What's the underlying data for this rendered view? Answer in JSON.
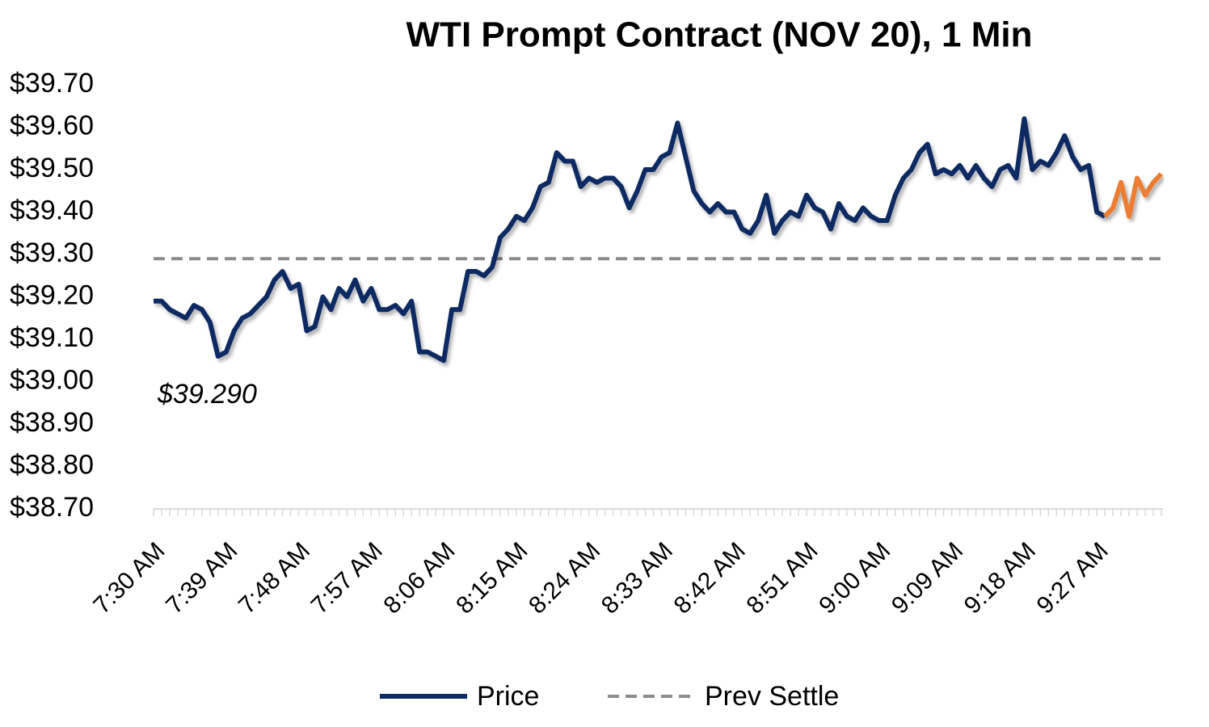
{
  "chart_data": {
    "type": "line",
    "title": "WTI Prompt Contract (NOV 20), 1 Min",
    "categories": [
      "7:30 AM",
      null,
      null,
      null,
      null,
      null,
      null,
      null,
      null,
      "7:39 AM",
      null,
      null,
      null,
      null,
      null,
      null,
      null,
      null,
      "7:48 AM",
      null,
      null,
      null,
      null,
      null,
      null,
      null,
      null,
      "7:57 AM",
      null,
      null,
      null,
      null,
      null,
      null,
      null,
      null,
      "8:06 AM",
      null,
      null,
      null,
      null,
      null,
      null,
      null,
      null,
      "8:15 AM",
      null,
      null,
      null,
      null,
      null,
      null,
      null,
      null,
      "8:24 AM",
      null,
      null,
      null,
      null,
      null,
      null,
      null,
      null,
      "8:33 AM",
      null,
      null,
      null,
      null,
      null,
      null,
      null,
      null,
      "8:42 AM",
      null,
      null,
      null,
      null,
      null,
      null,
      null,
      null,
      "8:51 AM",
      null,
      null,
      null,
      null,
      null,
      null,
      null,
      null,
      "9:00 AM",
      null,
      null,
      null,
      null,
      null,
      null,
      null,
      null,
      "9:09 AM",
      null,
      null,
      null,
      null,
      null,
      null,
      null,
      null,
      "9:18 AM",
      null,
      null,
      null,
      null,
      null,
      null,
      null,
      null,
      "9:27 AM",
      null,
      null,
      null,
      null,
      null,
      null,
      null,
      null
    ],
    "series": [
      {
        "name": "Price",
        "color": "#0e2a62",
        "values": [
          39.19,
          39.19,
          39.17,
          39.16,
          39.15,
          39.18,
          39.17,
          39.14,
          39.06,
          39.07,
          39.12,
          39.15,
          39.16,
          39.18,
          39.2,
          39.24,
          39.26,
          39.22,
          39.23,
          39.12,
          39.13,
          39.2,
          39.17,
          39.22,
          39.2,
          39.24,
          39.19,
          39.22,
          39.17,
          39.17,
          39.18,
          39.16,
          39.19,
          39.07,
          39.07,
          39.06,
          39.05,
          39.17,
          39.17,
          39.26,
          39.26,
          39.25,
          39.27,
          39.34,
          39.36,
          39.39,
          39.38,
          39.41,
          39.46,
          39.47,
          39.54,
          39.52,
          39.52,
          39.46,
          39.48,
          39.47,
          39.48,
          39.48,
          39.46,
          39.41,
          39.45,
          39.5,
          39.5,
          39.53,
          39.54,
          39.61,
          39.53,
          39.45,
          39.42,
          39.4,
          39.42,
          39.4,
          39.4,
          39.36,
          39.35,
          39.38,
          39.44,
          39.35,
          39.38,
          39.4,
          39.39,
          39.44,
          39.41,
          39.4,
          39.36,
          39.42,
          39.39,
          39.38,
          39.41,
          39.39,
          39.38,
          39.38,
          39.44,
          39.48,
          39.5,
          39.54,
          39.56,
          39.49,
          39.5,
          39.49,
          39.51,
          39.48,
          39.51,
          39.48,
          39.46,
          39.5,
          39.51,
          39.48,
          39.62,
          39.5,
          39.52,
          39.51,
          39.54,
          39.58,
          39.53,
          39.5,
          39.51,
          39.4,
          39.39,
          null,
          null,
          null,
          null,
          null,
          null,
          null
        ]
      },
      {
        "color": "#ed7d31",
        "values": [
          null,
          null,
          null,
          null,
          null,
          null,
          null,
          null,
          null,
          null,
          null,
          null,
          null,
          null,
          null,
          null,
          null,
          null,
          null,
          null,
          null,
          null,
          null,
          null,
          null,
          null,
          null,
          null,
          null,
          null,
          null,
          null,
          null,
          null,
          null,
          null,
          null,
          null,
          null,
          null,
          null,
          null,
          null,
          null,
          null,
          null,
          null,
          null,
          null,
          null,
          null,
          null,
          null,
          null,
          null,
          null,
          null,
          null,
          null,
          null,
          null,
          null,
          null,
          null,
          null,
          null,
          null,
          null,
          null,
          null,
          null,
          null,
          null,
          null,
          null,
          null,
          null,
          null,
          null,
          null,
          null,
          null,
          null,
          null,
          null,
          null,
          null,
          null,
          null,
          null,
          null,
          null,
          null,
          null,
          null,
          null,
          null,
          null,
          null,
          null,
          null,
          null,
          null,
          null,
          null,
          null,
          null,
          null,
          null,
          null,
          null,
          null,
          null,
          null,
          null,
          null,
          null,
          null,
          39.39,
          39.41,
          39.47,
          39.39,
          39.48,
          39.44,
          39.47,
          39.49
        ]
      }
    ],
    "prev_settle": {
      "name": "Prev Settle",
      "value": 39.29,
      "color": "#8c8c8c",
      "label": "$39.290"
    },
    "ylim": [
      38.7,
      39.7
    ],
    "yticks": [
      {
        "value": 38.7,
        "label": "$38.70"
      },
      {
        "value": 38.8,
        "label": "$38.80"
      },
      {
        "value": 38.9,
        "label": "$38.90"
      },
      {
        "value": 39.0,
        "label": "$39.00"
      },
      {
        "value": 39.1,
        "label": "$39.10"
      },
      {
        "value": 39.2,
        "label": "$39.20"
      },
      {
        "value": 39.3,
        "label": "$39.30"
      },
      {
        "value": 39.4,
        "label": "$39.40"
      },
      {
        "value": 39.5,
        "label": "$39.50"
      },
      {
        "value": 39.6,
        "label": "$39.60"
      },
      {
        "value": 39.7,
        "label": "$39.70"
      }
    ],
    "grid": false
  }
}
